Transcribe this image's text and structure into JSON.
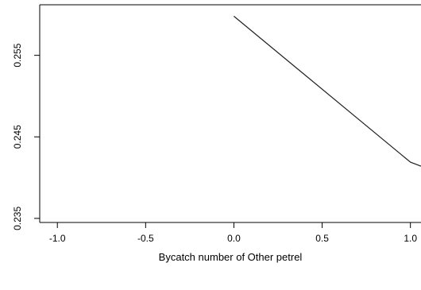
{
  "chart_data": {
    "type": "line",
    "xlabel": "Bycatch number of Other petrel",
    "ylabel": "",
    "xlim": [
      -1.1,
      1.06
    ],
    "ylim": [
      0.2345,
      0.2612
    ],
    "x_ticks": [
      -1.0,
      -0.5,
      0.0,
      0.5,
      1.0
    ],
    "x_tick_labels": [
      "-1.0",
      "-0.5",
      "0.0",
      "0.5",
      "1.0"
    ],
    "y_ticks": [
      0.235,
      0.245,
      0.255
    ],
    "y_tick_labels": [
      "0.235",
      "0.245",
      "0.255"
    ],
    "grid": false,
    "series": [
      {
        "x": [
          0.0,
          1.0,
          1.06
        ],
        "y": [
          0.2598,
          0.2419,
          0.2414
        ]
      }
    ]
  }
}
